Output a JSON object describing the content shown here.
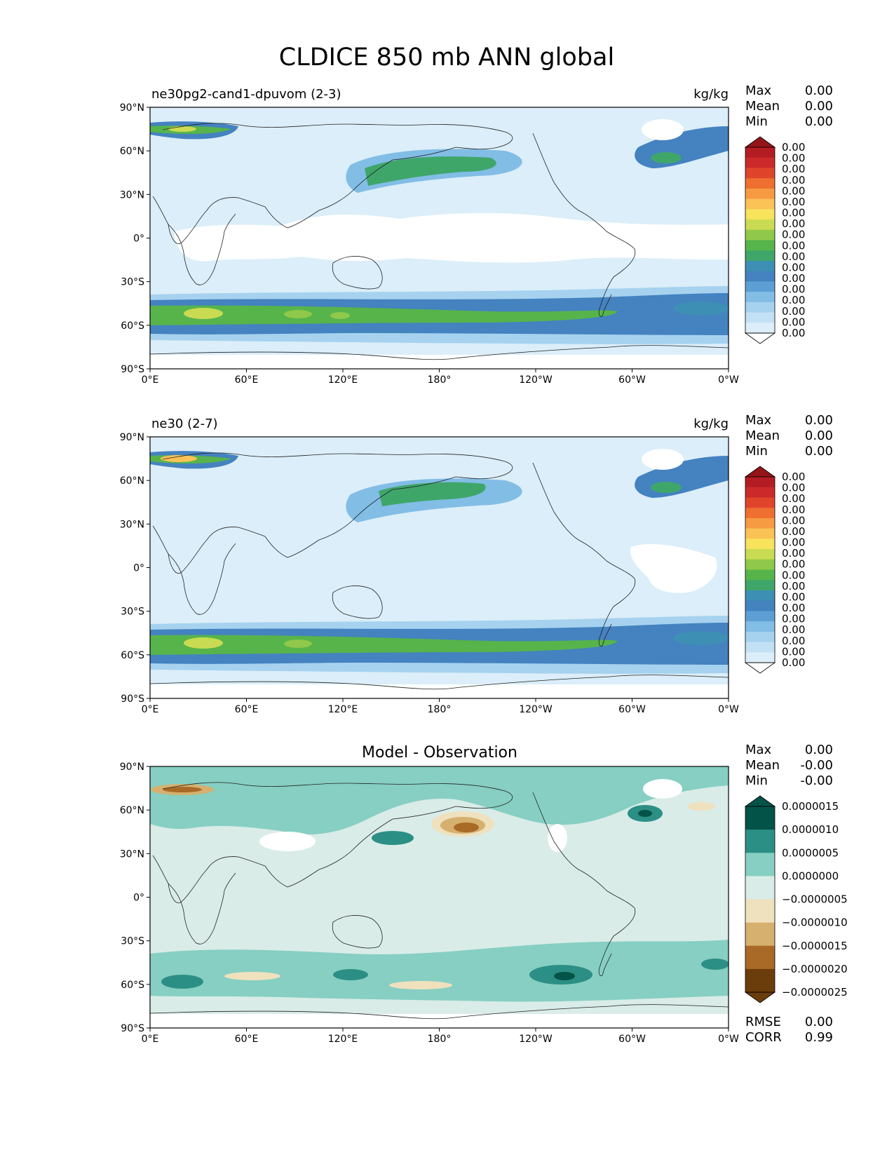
{
  "figure": {
    "title": "CLDICE 850 mb ANN global"
  },
  "axes": {
    "x_ticks": [
      "0°E",
      "60°E",
      "120°E",
      "180°",
      "120°W",
      "60°W",
      "0°W"
    ],
    "y_ticks": [
      "90°N",
      "60°N",
      "30°N",
      "0°",
      "30°S",
      "60°S",
      "90°S"
    ]
  },
  "colormaps": {
    "sequential": [
      "#ffffff",
      "#dbeef9",
      "#c3e1f5",
      "#a6d2ef",
      "#82bde6",
      "#5d9fd4",
      "#4482c0",
      "#3d8fb4",
      "#3fa66a",
      "#56b44b",
      "#8fc84a",
      "#c9db52",
      "#f7e35c",
      "#fbc256",
      "#f79b43",
      "#ef6f31",
      "#e0452c",
      "#cc2a2a",
      "#b31c22",
      "#951418"
    ],
    "diverging": [
      "#6b3d0b",
      "#a86a26",
      "#d5b06f",
      "#efe1bd",
      "#d9ece8",
      "#86cfc2",
      "#2c8f86",
      "#045348"
    ]
  },
  "panels": [
    {
      "id": "test",
      "left_title": "ne30pg2-cand1-dpuvom (2-3)",
      "units": "kg/kg",
      "stats": [
        {
          "label": "Max",
          "value": "0.00"
        },
        {
          "label": "Mean",
          "value": "0.00"
        },
        {
          "label": "Min",
          "value": "0.00"
        }
      ],
      "colorbar_labels": [
        "0.00",
        "0.00",
        "0.00",
        "0.00",
        "0.00",
        "0.00",
        "0.00",
        "0.00",
        "0.00",
        "0.00",
        "0.00",
        "0.00",
        "0.00",
        "0.00",
        "0.00",
        "0.00",
        "0.00",
        "0.00"
      ]
    },
    {
      "id": "reference",
      "left_title": "ne30 (2-7)",
      "units": "kg/kg",
      "stats": [
        {
          "label": "Max",
          "value": "0.00"
        },
        {
          "label": "Mean",
          "value": "0.00"
        },
        {
          "label": "Min",
          "value": "0.00"
        }
      ],
      "colorbar_labels": [
        "0.00",
        "0.00",
        "0.00",
        "0.00",
        "0.00",
        "0.00",
        "0.00",
        "0.00",
        "0.00",
        "0.00",
        "0.00",
        "0.00",
        "0.00",
        "0.00",
        "0.00",
        "0.00",
        "0.00",
        "0.00"
      ]
    },
    {
      "id": "difference",
      "center_title": "Model - Observation",
      "stats": [
        {
          "label": "Max",
          "value": "0.00"
        },
        {
          "label": "Mean",
          "value": "-0.00"
        },
        {
          "label": "Min",
          "value": "-0.00"
        }
      ],
      "colorbar_labels": [
        "0.0000015",
        "0.0000010",
        "0.0000005",
        "0.0000000",
        "−0.0000005",
        "−0.0000010",
        "−0.0000015",
        "−0.0000020",
        "−0.0000025"
      ],
      "metrics": [
        {
          "label": "RMSE",
          "value": "0.00"
        },
        {
          "label": "CORR",
          "value": "0.99"
        }
      ]
    }
  ]
}
